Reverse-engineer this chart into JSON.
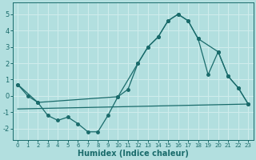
{
  "xlabel": "Humidex (Indice chaleur)",
  "background_color": "#b2dfdf",
  "grid_color": "#d0eded",
  "line_color": "#1a6b6b",
  "xlim": [
    -0.5,
    23.5
  ],
  "ylim": [
    -2.7,
    5.7
  ],
  "xticks": [
    0,
    1,
    2,
    3,
    4,
    5,
    6,
    7,
    8,
    9,
    10,
    11,
    12,
    13,
    14,
    15,
    16,
    17,
    18,
    19,
    20,
    21,
    22,
    23
  ],
  "yticks": [
    -2,
    -1,
    0,
    1,
    2,
    3,
    4,
    5
  ],
  "line1_x": [
    0,
    1,
    2,
    3,
    4,
    5,
    6,
    7,
    8,
    9,
    10,
    11,
    12,
    13,
    14,
    15,
    16,
    17,
    18,
    19,
    20,
    21,
    22,
    23
  ],
  "line1_y": [
    0.7,
    0.0,
    -0.4,
    -1.2,
    -1.5,
    -1.3,
    -1.7,
    -2.2,
    -2.2,
    -1.2,
    -0.05,
    0.4,
    2.0,
    3.0,
    3.6,
    4.6,
    5.0,
    4.6,
    3.5,
    1.3,
    2.7,
    1.2,
    0.5,
    -0.5
  ],
  "line2_x": [
    0,
    2,
    10,
    12,
    13,
    14,
    15,
    16,
    17,
    18,
    20,
    21,
    22,
    23
  ],
  "line2_y": [
    0.7,
    -0.4,
    -0.05,
    2.0,
    3.0,
    3.6,
    4.6,
    5.0,
    4.6,
    3.5,
    2.7,
    1.2,
    0.5,
    -0.5
  ],
  "line3_x": [
    0,
    23
  ],
  "line3_y": [
    -0.8,
    -0.5
  ]
}
